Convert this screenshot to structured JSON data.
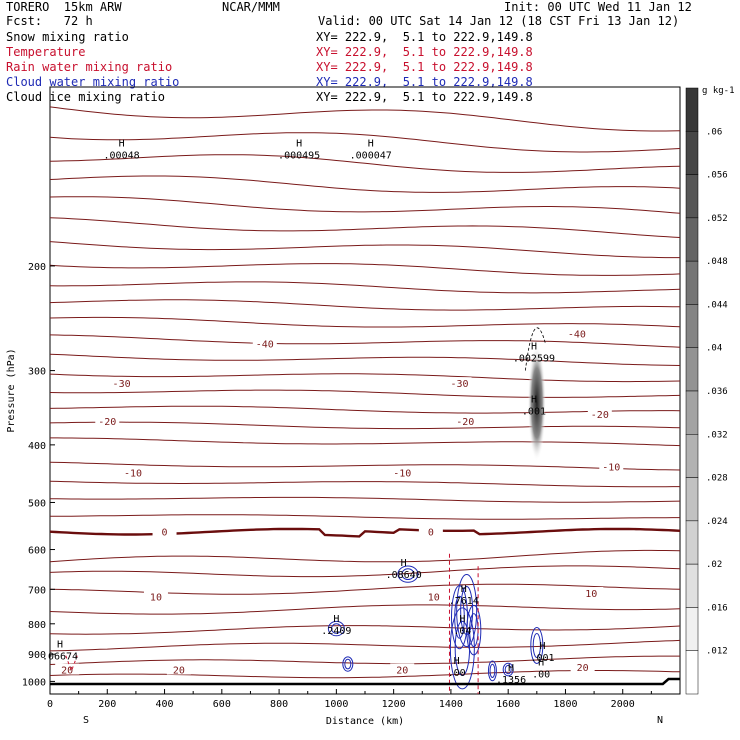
{
  "header": {
    "model": "TORERO  15km ARW",
    "center": "NCAR/MMM",
    "init": "Init: 00 UTC Wed 11 Jan 12",
    "fcst": "Fcst:   72 h",
    "valid": "Valid: 00 UTC Sat 14 Jan 12 (18 CST Fri 13 Jan 12)",
    "fields": [
      {
        "label": "Snow mixing ratio",
        "color": "#000000",
        "xy": "XY= 222.9,  5.1 to 222.9,149.8"
      },
      {
        "label": "Temperature",
        "color": "#c8102e",
        "xy": "XY= 222.9,  5.1 to 222.9,149.8"
      },
      {
        "label": "Rain water mixing ratio",
        "color": "#c8102e",
        "xy": "XY= 222.9,  5.1 to 222.9,149.8"
      },
      {
        "label": "Cloud water mixing ratio",
        "color": "#1f2bb5",
        "xy": "XY= 222.9,  5.1 to 222.9,149.8"
      },
      {
        "label": "Cloud ice mixing ratio",
        "color": "#000000",
        "xy": "XY= 222.9,  5.1 to 222.9,149.8"
      }
    ]
  },
  "chart_data": {
    "type": "contour",
    "xlabel": "Distance (km)",
    "ylabel": "Pressure (hPa)",
    "xlim": [
      0,
      2200
    ],
    "ylim": [
      1050,
      100
    ],
    "y_log": true,
    "xticks": [
      0,
      200,
      400,
      600,
      800,
      1000,
      1200,
      1400,
      1600,
      1800,
      2000
    ],
    "yticks": [
      200,
      300,
      400,
      500,
      600,
      700,
      800,
      900,
      1000
    ],
    "x_end_labels": {
      "left": "S",
      "right": "N"
    },
    "temperature_contours_C": [
      {
        "value": -40,
        "label_x": [
          750,
          1840
        ]
      },
      {
        "value": -30,
        "label_x": [
          250,
          1430
        ]
      },
      {
        "value": -20,
        "label_x": [
          200,
          1450,
          1920
        ]
      },
      {
        "value": -10,
        "label_x": [
          290,
          1230,
          1960
        ]
      },
      {
        "value": 0,
        "label_x": [
          400,
          1330
        ]
      },
      {
        "value": 10,
        "label_x": [
          370,
          1340,
          1890
        ]
      },
      {
        "value": 20,
        "label_x": [
          60,
          450,
          1230,
          1860
        ]
      }
    ],
    "annotations": [
      {
        "text": ".00048",
        "x": 250,
        "p": 130
      },
      {
        "text": ".000495",
        "x": 870,
        "p": 130
      },
      {
        "text": ".000047",
        "x": 1120,
        "p": 130
      },
      {
        "text": ".002599",
        "x": 1690,
        "p": 285
      },
      {
        "text": ".001",
        "x": 1690,
        "p": 350
      },
      {
        "text": ".08640",
        "x": 1235,
        "p": 660
      },
      {
        "text": ".7614",
        "x": 1445,
        "p": 730
      },
      {
        "text": ".04",
        "x": 1440,
        "p": 820
      },
      {
        "text": ".2409",
        "x": 1000,
        "p": 820
      },
      {
        "text": ".06674",
        "x": 35,
        "p": 905
      },
      {
        "text": ".001",
        "x": 1720,
        "p": 910
      },
      {
        "text": ".00",
        "x": 1420,
        "p": 965
      },
      {
        "text": ".1356",
        "x": 1610,
        "p": 990
      },
      {
        "text": ".00",
        "x": 1715,
        "p": 970
      }
    ],
    "colorbar": {
      "unit": "g kg-1",
      "levels": [
        ".012",
        ".016",
        ".02",
        ".024",
        ".028",
        ".032",
        ".036",
        ".04",
        ".044",
        ".048",
        ".052",
        ".056",
        ".06"
      ]
    }
  }
}
